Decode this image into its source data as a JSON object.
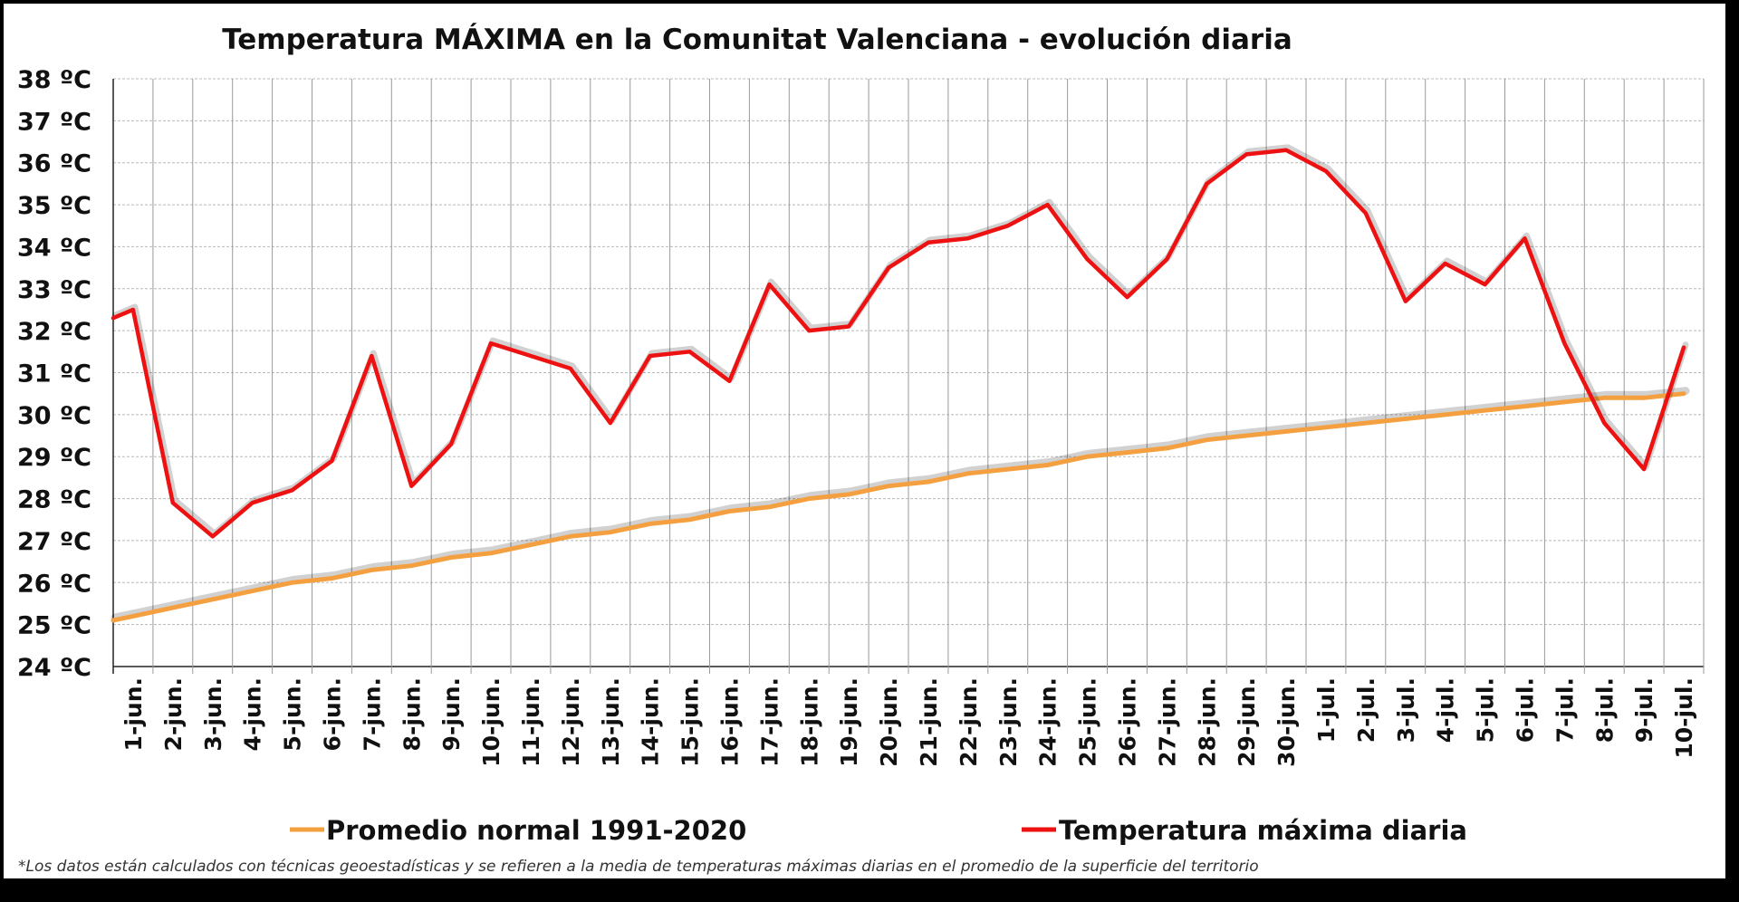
{
  "chart_data": {
    "type": "line",
    "title": "Temperatura MÁXIMA en la Comunitat Valenciana - evolución diaria",
    "xlabel": "",
    "ylabel": "",
    "ylim": [
      24,
      38
    ],
    "y_tick_labels": [
      "24 ºC",
      "25 ºC",
      "26 ºC",
      "27 ºC",
      "28 ºC",
      "29 ºC",
      "30 ºC",
      "31 ºC",
      "32 ºC",
      "33 ºC",
      "34 ºC",
      "35 ºC",
      "36 ºC",
      "37 ºC",
      "38 ºC"
    ],
    "categories": [
      "1-jun.",
      "2-jun.",
      "3-jun.",
      "4-jun.",
      "5-jun.",
      "6-jun.",
      "7-jun.",
      "8-jun.",
      "9-jun.",
      "10-jun.",
      "11-jun.",
      "12-jun.",
      "13-jun.",
      "14-jun.",
      "15-jun.",
      "16-jun.",
      "17-jun.",
      "18-jun.",
      "19-jun.",
      "20-jun.",
      "21-jun.",
      "22-jun.",
      "23-jun.",
      "24-jun.",
      "25-jun.",
      "26-jun.",
      "27-jun.",
      "28-jun.",
      "29-jun.",
      "30-jun.",
      "1-jul.",
      "2-jul.",
      "3-jul.",
      "4-jul.",
      "5-jul.",
      "6-jul.",
      "7-jul.",
      "8-jul.",
      "9-jul.",
      "10-jul."
    ],
    "grid": true,
    "legend_position": "bottom",
    "series": [
      {
        "name": "Promedio normal 1991-2020",
        "color": "#f4a040",
        "start_value": 25.1,
        "start_label": "",
        "values": [
          25.2,
          25.4,
          25.6,
          25.8,
          26.0,
          26.1,
          26.3,
          26.4,
          26.6,
          26.7,
          26.9,
          27.1,
          27.2,
          27.4,
          27.5,
          27.7,
          27.8,
          28.0,
          28.1,
          28.3,
          28.4,
          28.6,
          28.7,
          28.8,
          29.0,
          29.1,
          29.2,
          29.4,
          29.5,
          29.6,
          29.7,
          29.8,
          29.9,
          30.0,
          30.1,
          30.2,
          30.3,
          30.4,
          30.4,
          30.5
        ]
      },
      {
        "name": "Temperatura máxima diaria",
        "color": "#ee1111",
        "start_value": 32.3,
        "start_label": "",
        "values": [
          32.5,
          27.9,
          27.1,
          27.9,
          28.2,
          28.9,
          31.4,
          28.3,
          29.3,
          31.7,
          31.4,
          31.1,
          29.8,
          31.4,
          31.5,
          30.8,
          33.1,
          32.0,
          32.1,
          33.5,
          34.1,
          34.2,
          34.5,
          35.0,
          33.7,
          32.8,
          33.7,
          35.5,
          36.2,
          36.3,
          35.8,
          34.8,
          32.7,
          33.6,
          33.1,
          34.2,
          31.7,
          29.8,
          28.7,
          31.6
        ]
      }
    ],
    "footnote": "*Los datos están calculados con técnicas geoestadísticas y se refieren a la media de temperaturas máximas diarias en el promedio de la superficie del territorio"
  }
}
